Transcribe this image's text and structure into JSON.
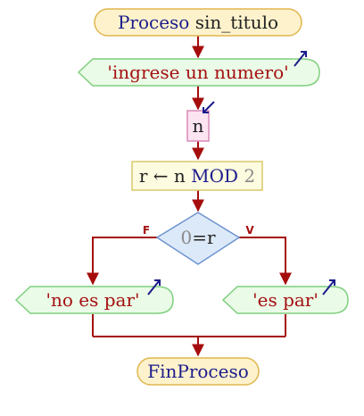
{
  "diagram": {
    "start": {
      "keyword": "Proceso",
      "name": "sin_titulo"
    },
    "output_prompt": "'ingrese un numero'",
    "input_var": "n",
    "assign": {
      "target": "r",
      "expr_var": "n",
      "op": "MOD",
      "num": "2"
    },
    "decision": {
      "left": "0",
      "op": "=",
      "right": "r",
      "false_label": "F",
      "true_label": "V"
    },
    "output_false": "'no es par'",
    "output_true": "'es par'",
    "end": "FinProceso"
  },
  "colors": {
    "line": "#a50d0d",
    "terminal_fill": "#fdf2cc",
    "terminal_stroke": "#e0b64e",
    "io_fill": "#eafbe7",
    "io_stroke": "#7fcf7f",
    "input_fill": "#fce4f0",
    "input_stroke": "#d98ab8",
    "process_fill": "#fdfbe0",
    "process_stroke": "#d8c96a",
    "decision_fill": "#dce9f9",
    "decision_stroke": "#6e94cf",
    "keyword": "#1c1c8c",
    "string": "#a51010",
    "number": "#8a8a8a",
    "text": "#222222"
  }
}
